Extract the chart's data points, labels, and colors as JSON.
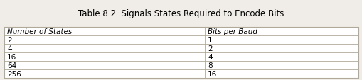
{
  "title": "Table 8.2. Signals States Required to Encode Bits",
  "col_headers": [
    "Number of States",
    "Bits per Baud"
  ],
  "rows": [
    [
      "2",
      "1"
    ],
    [
      "4",
      "2"
    ],
    [
      "16",
      "4"
    ],
    [
      "64",
      "8"
    ],
    [
      "256",
      "16"
    ]
  ],
  "title_fontsize": 8.5,
  "header_fontsize": 7.5,
  "cell_fontsize": 7.5,
  "col_split": 0.565,
  "background_color": "#f0ede8",
  "row_color": "#ffffff",
  "header_row_color": "#ffffff",
  "border_color": "#b0a898",
  "text_color": "#000000",
  "title_color": "#000000",
  "fig_width": 5.1,
  "fig_height": 1.14,
  "dpi": 100
}
